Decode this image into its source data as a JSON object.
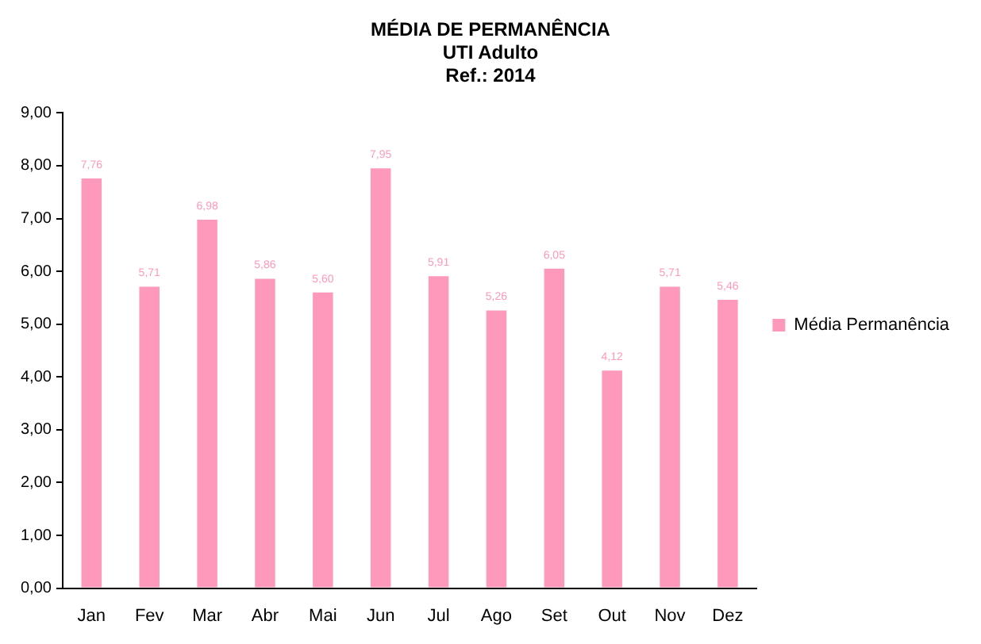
{
  "chart_data": {
    "type": "bar",
    "title": "MÉDIA DE PERMANÊNCIA",
    "subtitle": "UTI Adulto\nRef.: 2014",
    "categories": [
      "Jan",
      "Fev",
      "Mar",
      "Abr",
      "Mai",
      "Jun",
      "Jul",
      "Ago",
      "Set",
      "Out",
      "Nov",
      "Dez"
    ],
    "series": [
      {
        "name": "Média Permanência",
        "color": "#ff99bb",
        "values": [
          7.76,
          5.71,
          6.98,
          5.86,
          5.6,
          7.95,
          5.91,
          5.26,
          6.05,
          4.12,
          5.71,
          5.46
        ],
        "value_labels": [
          "7,76",
          "5,71",
          "6,98",
          "5,86",
          "5,60",
          "7,95",
          "5,91",
          "5,26",
          "6,05",
          "4,12",
          "5,71",
          "5,46"
        ]
      }
    ],
    "ylim": [
      0,
      9
    ],
    "yticks": [
      {
        "value": 0,
        "label": "0,00"
      },
      {
        "value": 1,
        "label": "1,00"
      },
      {
        "value": 2,
        "label": "2,00"
      },
      {
        "value": 3,
        "label": "3,00"
      },
      {
        "value": 4,
        "label": "4,00"
      },
      {
        "value": 5,
        "label": "5,00"
      },
      {
        "value": 6,
        "label": "6,00"
      },
      {
        "value": 7,
        "label": "7,00"
      },
      {
        "value": 8,
        "label": "8,00"
      },
      {
        "value": 9,
        "label": "9,00"
      }
    ],
    "grid": false,
    "legend": "right"
  }
}
